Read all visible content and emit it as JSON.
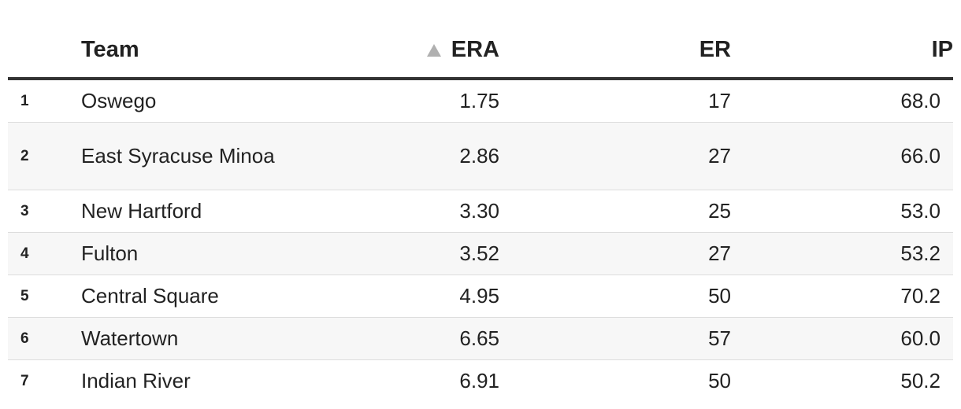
{
  "table": {
    "headers": {
      "rank": "",
      "team": "Team",
      "era": "ERA",
      "er": "ER",
      "ip": "IP"
    },
    "sort": {
      "column": "ERA",
      "direction": "ascending",
      "icon": "sort-ascending-icon"
    },
    "rows": [
      {
        "rank": "1",
        "team": "Oswego",
        "era": "1.75",
        "er": "17",
        "ip": "68.0"
      },
      {
        "rank": "2",
        "team": "East Syracuse Minoa",
        "era": "2.86",
        "er": "27",
        "ip": "66.0"
      },
      {
        "rank": "3",
        "team": "New Hartford",
        "era": "3.30",
        "er": "25",
        "ip": "53.0"
      },
      {
        "rank": "4",
        "team": "Fulton",
        "era": "3.52",
        "er": "27",
        "ip": "53.2"
      },
      {
        "rank": "5",
        "team": "Central Square",
        "era": "4.95",
        "er": "50",
        "ip": "70.2"
      },
      {
        "rank": "6",
        "team": "Watertown",
        "era": "6.65",
        "er": "57",
        "ip": "60.0"
      },
      {
        "rank": "7",
        "team": "Indian River",
        "era": "6.91",
        "er": "50",
        "ip": "50.2"
      }
    ]
  },
  "colors": {
    "header_rule": "#333333",
    "row_divider": "#dddddd",
    "zebra": "#f7f7f7",
    "sort_icon": "#b0b0b0"
  }
}
